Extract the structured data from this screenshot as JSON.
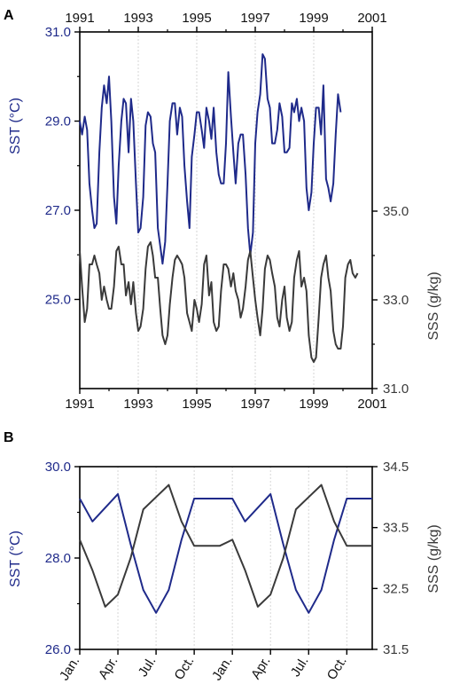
{
  "chart_data": [
    {
      "panel": "A",
      "type": "line",
      "x_ticks": [
        "1991",
        "1993",
        "1995",
        "1997",
        "1999",
        "2001"
      ],
      "xlim": [
        1991,
        2001
      ],
      "left_axis": {
        "label": "SST (°C)",
        "ticks": [
          "31.0",
          "29.0",
          "27.0",
          "25.0"
        ],
        "ylim": [
          23.0,
          31.0
        ]
      },
      "right_axis": {
        "label": "SSS (g/kg)",
        "ticks": [
          "35.0",
          "33.0",
          "31.0"
        ],
        "ylim": [
          31.0,
          35.0
        ]
      },
      "grid": "vertical dotted",
      "sst_x": [
        1991.0,
        1991.08,
        1991.17,
        1991.25,
        1991.33,
        1991.42,
        1991.5,
        1991.58,
        1991.67,
        1991.75,
        1991.83,
        1991.92,
        1992.0,
        1992.08,
        1992.17,
        1992.25,
        1992.33,
        1992.42,
        1992.5,
        1992.58,
        1992.67,
        1992.75,
        1992.83,
        1992.92,
        1993.0,
        1993.08,
        1993.17,
        1993.25,
        1993.33,
        1993.42,
        1993.5,
        1993.58,
        1993.67,
        1993.75,
        1993.83,
        1993.92,
        1994.0,
        1994.08,
        1994.17,
        1994.25,
        1994.33,
        1994.42,
        1994.5,
        1994.58,
        1994.67,
        1994.75,
        1994.83,
        1994.92,
        1995.0,
        1995.08,
        1995.17,
        1995.25,
        1995.33,
        1995.42,
        1995.5,
        1995.58,
        1995.67,
        1995.75,
        1995.83,
        1995.92,
        1996.0,
        1996.08,
        1996.17,
        1996.25,
        1996.33,
        1996.42,
        1996.5,
        1996.58,
        1996.67,
        1996.75,
        1996.83,
        1996.92,
        1997.0,
        1997.08,
        1997.17,
        1997.25,
        1997.33,
        1997.42,
        1997.5,
        1997.58,
        1997.67,
        1997.75,
        1997.83,
        1997.92,
        1998.0,
        1998.08,
        1998.17,
        1998.25,
        1998.33,
        1998.42,
        1998.5,
        1998.58,
        1998.67,
        1998.75,
        1998.83,
        1998.92,
        1999.0,
        1999.08,
        1999.17,
        1999.25,
        1999.33,
        1999.42,
        1999.5,
        1999.58,
        1999.67,
        1999.75,
        1999.83,
        1999.92,
        2000.0,
        2000.08,
        2000.17,
        2000.25,
        2000.33,
        2000.42,
        2000.5,
        2000.58,
        2000.67,
        2000.75,
        2000.83,
        2000.92
      ],
      "sst": [
        29.0,
        28.7,
        29.1,
        28.8,
        27.6,
        27.0,
        26.6,
        26.7,
        28.3,
        29.3,
        29.8,
        29.4,
        30.0,
        29.0,
        27.3,
        26.7,
        28.0,
        29.0,
        29.5,
        29.4,
        28.3,
        29.5,
        29.0,
        27.6,
        26.5,
        26.6,
        27.3,
        28.9,
        29.2,
        29.1,
        28.5,
        28.3,
        26.6,
        26.2,
        25.8,
        26.3,
        27.6,
        29.0,
        29.4,
        29.4,
        28.7,
        29.3,
        29.1,
        28.0,
        27.2,
        26.6,
        28.2,
        28.7,
        29.2,
        29.2,
        28.8,
        28.4,
        29.3,
        29.0,
        28.6,
        29.3,
        28.3,
        27.8,
        27.6,
        27.6,
        28.5,
        30.1,
        29.1,
        28.3,
        27.6,
        28.5,
        28.7,
        28.7,
        27.8,
        26.6,
        26.0,
        26.5,
        28.5,
        29.2,
        29.6,
        30.5,
        30.4,
        29.5,
        29.3,
        28.5,
        28.5,
        28.8,
        29.4,
        29.1,
        28.3,
        28.3,
        28.4,
        29.4,
        29.2,
        29.5,
        29.0,
        29.3,
        29.0,
        27.5,
        27.0,
        27.4,
        28.5,
        29.3,
        29.3,
        28.7,
        29.8,
        27.7,
        27.5,
        27.2,
        27.6,
        28.7,
        29.6,
        29.2
      ],
      "sss_x": [
        1991.0,
        1991.08,
        1991.17,
        1991.25,
        1991.33,
        1991.42,
        1991.5,
        1991.58,
        1991.67,
        1991.75,
        1991.83,
        1991.92,
        1992.0,
        1992.08,
        1992.17,
        1992.25,
        1992.33,
        1992.42,
        1992.5,
        1992.58,
        1992.67,
        1992.75,
        1992.83,
        1992.92,
        1993.0,
        1993.08,
        1993.17,
        1993.25,
        1993.33,
        1993.42,
        1993.5,
        1993.58,
        1993.67,
        1993.75,
        1993.83,
        1993.92,
        1994.0,
        1994.08,
        1994.17,
        1994.25,
        1994.33,
        1994.42,
        1994.5,
        1994.58,
        1994.67,
        1994.75,
        1994.83,
        1994.92,
        1995.0,
        1995.08,
        1995.17,
        1995.25,
        1995.33,
        1995.42,
        1995.5,
        1995.58,
        1995.67,
        1995.75,
        1995.83,
        1995.92,
        1996.0,
        1996.08,
        1996.17,
        1996.25,
        1996.33,
        1996.42,
        1996.5,
        1996.58,
        1996.67,
        1996.75,
        1996.83,
        1996.92,
        1997.0,
        1997.08,
        1997.17,
        1997.25,
        1997.33,
        1997.42,
        1997.5,
        1997.58,
        1997.67,
        1997.75,
        1997.83,
        1997.92,
        1998.0,
        1998.08,
        1998.17,
        1998.25,
        1998.33,
        1998.42,
        1998.5,
        1998.58,
        1998.67,
        1998.75,
        1998.83,
        1998.92,
        1999.0,
        1999.08,
        1999.17,
        1999.25,
        1999.33,
        1999.42,
        1999.5,
        1999.58,
        1999.67,
        1999.75,
        1999.83,
        1999.92,
        2000.0,
        2000.08,
        2000.17,
        2000.25,
        2000.33,
        2000.42,
        2000.5,
        2000.58,
        2000.67,
        2000.75,
        2000.83,
        2000.92
      ],
      "sss": [
        34.1,
        33.3,
        32.5,
        32.8,
        33.8,
        33.8,
        34.0,
        33.8,
        33.6,
        33.0,
        33.3,
        33.0,
        32.8,
        32.8,
        33.3,
        34.1,
        34.2,
        33.8,
        33.8,
        33.1,
        33.4,
        32.9,
        33.4,
        32.7,
        32.3,
        32.4,
        32.8,
        33.7,
        34.2,
        34.3,
        34.0,
        33.5,
        33.5,
        32.8,
        32.2,
        32.0,
        32.2,
        32.9,
        33.5,
        33.9,
        34.0,
        33.9,
        33.8,
        33.5,
        32.7,
        32.5,
        32.3,
        33.0,
        32.8,
        32.5,
        32.9,
        33.8,
        34.0,
        33.1,
        33.4,
        32.5,
        32.3,
        32.4,
        33.2,
        33.8,
        33.8,
        33.7,
        33.3,
        33.6,
        33.2,
        33.0,
        32.6,
        32.8,
        33.3,
        33.9,
        34.1,
        33.5,
        33.0,
        32.6,
        32.2,
        32.8,
        33.7,
        34.0,
        33.9,
        33.6,
        33.3,
        32.6,
        32.4,
        33.0,
        33.3,
        32.6,
        32.3,
        32.5,
        33.5,
        33.9,
        34.1,
        33.3,
        33.5,
        33.2,
        32.2,
        31.7,
        31.6,
        31.7,
        32.6,
        33.5,
        33.8,
        34.0,
        33.5,
        33.2,
        32.3,
        32.0,
        31.9,
        31.9,
        32.4,
        33.5,
        33.8,
        33.9,
        33.6,
        33.5,
        33.6
      ]
    },
    {
      "panel": "B",
      "type": "line",
      "x_ticks": [
        "Jan.",
        "Apr.",
        "Jul.",
        "Oct.",
        "Jan.",
        "Apr.",
        "Jul.",
        "Oct."
      ],
      "x_tick_positions": [
        0,
        3,
        6,
        9,
        12,
        15,
        18,
        21
      ],
      "xlim": [
        0,
        23
      ],
      "left_axis": {
        "label": "SST (°C)",
        "ticks": [
          "30.0",
          "28.0",
          "26.0"
        ],
        "ylim": [
          26.0,
          30.0
        ]
      },
      "right_axis": {
        "label": "SSS (g/kg)",
        "ticks": [
          "34.5",
          "33.5",
          "32.5",
          "31.5"
        ],
        "ylim": [
          31.5,
          34.5
        ]
      },
      "grid": "vertical dotted",
      "month_index": [
        0,
        1,
        2,
        3,
        4,
        5,
        6,
        7,
        8,
        9,
        10,
        11,
        12,
        13,
        14,
        15,
        16,
        17,
        18,
        19,
        20,
        21,
        22,
        23
      ],
      "sst": [
        29.3,
        28.8,
        29.1,
        29.4,
        28.3,
        27.3,
        26.8,
        27.3,
        28.4,
        29.3,
        29.3,
        29.3,
        29.3,
        28.8,
        29.1,
        29.4,
        28.3,
        27.3,
        26.8,
        27.3,
        28.4,
        29.3,
        29.3,
        29.3
      ],
      "sss": [
        33.3,
        32.8,
        32.2,
        32.4,
        33.0,
        33.8,
        34.0,
        34.2,
        33.6,
        33.2,
        33.2,
        33.2,
        33.3,
        32.8,
        32.2,
        32.4,
        33.0,
        33.8,
        34.0,
        34.2,
        33.6,
        33.2,
        33.2,
        33.2
      ],
      "colors": {
        "sst": "#1f2a8a",
        "sss": "#3a3a3a"
      }
    }
  ],
  "panel_labels": {
    "a": "A",
    "b": "B"
  }
}
